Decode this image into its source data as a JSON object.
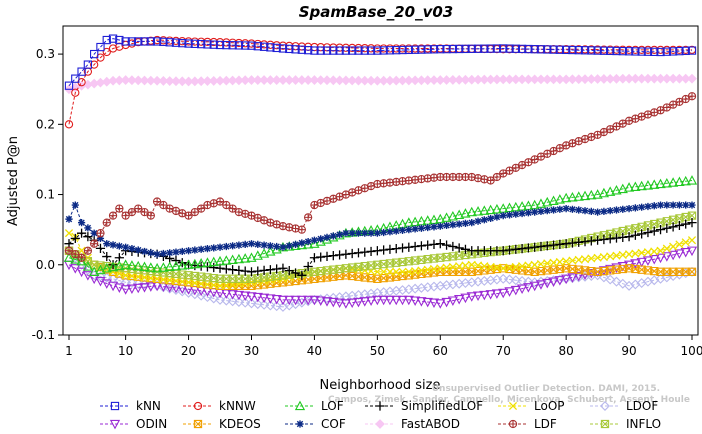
{
  "chart_data": {
    "type": "line",
    "title": "SpamBase_20_v03",
    "xlabel": "Neighborhood size",
    "ylabel": "Adjusted P@n",
    "xlim": [
      1,
      100
    ],
    "ylim": [
      -0.1,
      0.34
    ],
    "x_ticks": [
      1,
      10,
      20,
      30,
      40,
      50,
      60,
      70,
      80,
      90,
      100
    ],
    "y_ticks": [
      -0.1,
      0.0,
      0.1,
      0.2,
      0.3
    ],
    "y_tick_labels": [
      "-0.1",
      "0.0",
      "0.1",
      "0.2",
      "0.3"
    ],
    "grid": false,
    "legend_position": "bottom",
    "watermark": [
      "Unsupervised Outlier Detection. DAMI, 2015.",
      "Campos, Zimek, Sander, Campello, Micenkova, Schubert, Assent, Houle"
    ],
    "series": [
      {
        "name": "kNN",
        "color": "#1f1fd6",
        "marker": "square",
        "points": [
          [
            1,
            0.255
          ],
          [
            2,
            0.265
          ],
          [
            3,
            0.275
          ],
          [
            4,
            0.285
          ],
          [
            5,
            0.3
          ],
          [
            6,
            0.31
          ],
          [
            7,
            0.32
          ],
          [
            8,
            0.322
          ],
          [
            9,
            0.32
          ],
          [
            10,
            0.318
          ],
          [
            12,
            0.318
          ],
          [
            15,
            0.318
          ],
          [
            20,
            0.315
          ],
          [
            25,
            0.313
          ],
          [
            30,
            0.312
          ],
          [
            35,
            0.308
          ],
          [
            40,
            0.305
          ],
          [
            50,
            0.305
          ],
          [
            60,
            0.307
          ],
          [
            70,
            0.308
          ],
          [
            80,
            0.306
          ],
          [
            90,
            0.304
          ],
          [
            95,
            0.303
          ],
          [
            100,
            0.305
          ]
        ]
      },
      {
        "name": "kNNW",
        "color": "#e01c1c",
        "marker": "circle",
        "points": [
          [
            1,
            0.2
          ],
          [
            2,
            0.245
          ],
          [
            3,
            0.26
          ],
          [
            4,
            0.275
          ],
          [
            5,
            0.285
          ],
          [
            6,
            0.295
          ],
          [
            7,
            0.303
          ],
          [
            8,
            0.308
          ],
          [
            10,
            0.313
          ],
          [
            12,
            0.317
          ],
          [
            15,
            0.32
          ],
          [
            20,
            0.318
          ],
          [
            25,
            0.317
          ],
          [
            30,
            0.315
          ],
          [
            35,
            0.312
          ],
          [
            40,
            0.31
          ],
          [
            50,
            0.308
          ],
          [
            60,
            0.308
          ],
          [
            70,
            0.307
          ],
          [
            80,
            0.307
          ],
          [
            90,
            0.306
          ],
          [
            100,
            0.306
          ]
        ]
      },
      {
        "name": "LOF",
        "color": "#22c922",
        "marker": "triangle",
        "points": [
          [
            1,
            0.01
          ],
          [
            3,
            0.005
          ],
          [
            5,
            -0.01
          ],
          [
            7,
            -0.005
          ],
          [
            10,
            0.0
          ],
          [
            15,
            -0.005
          ],
          [
            20,
            0.0
          ],
          [
            25,
            0.005
          ],
          [
            30,
            0.01
          ],
          [
            35,
            0.025
          ],
          [
            40,
            0.03
          ],
          [
            45,
            0.045
          ],
          [
            50,
            0.05
          ],
          [
            55,
            0.06
          ],
          [
            60,
            0.065
          ],
          [
            65,
            0.075
          ],
          [
            70,
            0.08
          ],
          [
            75,
            0.085
          ],
          [
            80,
            0.095
          ],
          [
            85,
            0.1
          ],
          [
            90,
            0.11
          ],
          [
            95,
            0.115
          ],
          [
            100,
            0.12
          ]
        ]
      },
      {
        "name": "SimplifiedLOF",
        "color": "#000000",
        "marker": "plus",
        "points": [
          [
            1,
            0.03
          ],
          [
            3,
            0.045
          ],
          [
            5,
            0.035
          ],
          [
            8,
            0.0
          ],
          [
            10,
            0.02
          ],
          [
            15,
            0.015
          ],
          [
            20,
            0.0
          ],
          [
            25,
            -0.005
          ],
          [
            30,
            -0.01
          ],
          [
            35,
            -0.005
          ],
          [
            38,
            -0.015
          ],
          [
            40,
            0.01
          ],
          [
            45,
            0.015
          ],
          [
            50,
            0.02
          ],
          [
            55,
            0.025
          ],
          [
            60,
            0.03
          ],
          [
            65,
            0.02
          ],
          [
            70,
            0.02
          ],
          [
            75,
            0.025
          ],
          [
            80,
            0.03
          ],
          [
            85,
            0.035
          ],
          [
            90,
            0.04
          ],
          [
            95,
            0.05
          ],
          [
            100,
            0.06
          ]
        ]
      },
      {
        "name": "LoOP",
        "color": "#f0e000",
        "marker": "x",
        "points": [
          [
            1,
            0.045
          ],
          [
            2,
            0.04
          ],
          [
            3,
            0.02
          ],
          [
            5,
            0.0
          ],
          [
            8,
            -0.01
          ],
          [
            10,
            -0.015
          ],
          [
            15,
            -0.02
          ],
          [
            20,
            -0.025
          ],
          [
            25,
            -0.03
          ],
          [
            30,
            -0.025
          ],
          [
            35,
            -0.02
          ],
          [
            40,
            -0.01
          ],
          [
            45,
            -0.005
          ],
          [
            50,
            -0.01
          ],
          [
            55,
            -0.01
          ],
          [
            60,
            -0.005
          ],
          [
            65,
            0.0
          ],
          [
            70,
            -0.005
          ],
          [
            75,
            0.0
          ],
          [
            80,
            0.005
          ],
          [
            85,
            0.01
          ],
          [
            90,
            0.015
          ],
          [
            95,
            0.02
          ],
          [
            100,
            0.035
          ]
        ]
      },
      {
        "name": "LDOF",
        "color": "#b8b8ec",
        "marker": "diamond",
        "points": [
          [
            1,
            0.02
          ],
          [
            3,
            0.0
          ],
          [
            5,
            -0.015
          ],
          [
            8,
            -0.02
          ],
          [
            10,
            -0.025
          ],
          [
            15,
            -0.03
          ],
          [
            20,
            -0.04
          ],
          [
            25,
            -0.05
          ],
          [
            30,
            -0.055
          ],
          [
            35,
            -0.06
          ],
          [
            40,
            -0.05
          ],
          [
            45,
            -0.045
          ],
          [
            50,
            -0.04
          ],
          [
            55,
            -0.035
          ],
          [
            60,
            -0.03
          ],
          [
            65,
            -0.025
          ],
          [
            70,
            -0.02
          ],
          [
            75,
            -0.025
          ],
          [
            80,
            -0.02
          ],
          [
            85,
            -0.015
          ],
          [
            90,
            -0.03
          ],
          [
            95,
            -0.02
          ],
          [
            100,
            -0.01
          ]
        ]
      },
      {
        "name": "ODIN",
        "color": "#9a2ad4",
        "marker": "triangle-down",
        "points": [
          [
            1,
            0.0
          ],
          [
            3,
            -0.01
          ],
          [
            5,
            -0.02
          ],
          [
            8,
            -0.03
          ],
          [
            10,
            -0.035
          ],
          [
            15,
            -0.03
          ],
          [
            20,
            -0.035
          ],
          [
            25,
            -0.04
          ],
          [
            30,
            -0.045
          ],
          [
            35,
            -0.05
          ],
          [
            40,
            -0.05
          ],
          [
            45,
            -0.055
          ],
          [
            50,
            -0.05
          ],
          [
            55,
            -0.05
          ],
          [
            60,
            -0.055
          ],
          [
            65,
            -0.045
          ],
          [
            70,
            -0.04
          ],
          [
            75,
            -0.03
          ],
          [
            80,
            -0.02
          ],
          [
            85,
            -0.01
          ],
          [
            90,
            0.0
          ],
          [
            95,
            0.01
          ],
          [
            100,
            0.02
          ]
        ]
      },
      {
        "name": "KDEOS",
        "color": "#f0a000",
        "marker": "square-x",
        "points": [
          [
            1,
            0.02
          ],
          [
            3,
            0.01
          ],
          [
            5,
            0.0
          ],
          [
            8,
            -0.01
          ],
          [
            10,
            -0.015
          ],
          [
            15,
            -0.02
          ],
          [
            20,
            -0.025
          ],
          [
            25,
            -0.03
          ],
          [
            30,
            -0.03
          ],
          [
            35,
            -0.025
          ],
          [
            40,
            -0.02
          ],
          [
            45,
            -0.015
          ],
          [
            50,
            -0.02
          ],
          [
            55,
            -0.015
          ],
          [
            60,
            -0.01
          ],
          [
            65,
            -0.01
          ],
          [
            70,
            -0.005
          ],
          [
            75,
            -0.01
          ],
          [
            80,
            -0.005
          ],
          [
            85,
            -0.01
          ],
          [
            90,
            -0.005
          ],
          [
            95,
            -0.01
          ],
          [
            100,
            -0.01
          ]
        ]
      },
      {
        "name": "COF",
        "color": "#0b2a86",
        "marker": "asterisk",
        "points": [
          [
            1,
            0.065
          ],
          [
            2,
            0.085
          ],
          [
            3,
            0.06
          ],
          [
            5,
            0.045
          ],
          [
            7,
            0.03
          ],
          [
            10,
            0.025
          ],
          [
            15,
            0.015
          ],
          [
            20,
            0.02
          ],
          [
            25,
            0.025
          ],
          [
            30,
            0.03
          ],
          [
            35,
            0.025
          ],
          [
            40,
            0.035
          ],
          [
            45,
            0.045
          ],
          [
            50,
            0.045
          ],
          [
            55,
            0.05
          ],
          [
            60,
            0.055
          ],
          [
            65,
            0.06
          ],
          [
            70,
            0.07
          ],
          [
            75,
            0.075
          ],
          [
            80,
            0.08
          ],
          [
            85,
            0.075
          ],
          [
            90,
            0.08
          ],
          [
            95,
            0.085
          ],
          [
            100,
            0.085
          ]
        ]
      },
      {
        "name": "FastABOD",
        "color": "#f7c7f3",
        "marker": "diamond-filled",
        "points": [
          [
            1,
            0.25
          ],
          [
            3,
            0.255
          ],
          [
            5,
            0.258
          ],
          [
            8,
            0.262
          ],
          [
            10,
            0.263
          ],
          [
            15,
            0.262
          ],
          [
            20,
            0.261
          ],
          [
            25,
            0.262
          ],
          [
            30,
            0.263
          ],
          [
            40,
            0.263
          ],
          [
            50,
            0.262
          ],
          [
            60,
            0.263
          ],
          [
            70,
            0.264
          ],
          [
            80,
            0.264
          ],
          [
            90,
            0.265
          ],
          [
            100,
            0.265
          ]
        ]
      },
      {
        "name": "LDF",
        "color": "#a83232",
        "marker": "circle-plus",
        "points": [
          [
            1,
            0.02
          ],
          [
            3,
            0.01
          ],
          [
            5,
            0.03
          ],
          [
            7,
            0.06
          ],
          [
            9,
            0.08
          ],
          [
            10,
            0.07
          ],
          [
            12,
            0.08
          ],
          [
            14,
            0.07
          ],
          [
            15,
            0.09
          ],
          [
            17,
            0.08
          ],
          [
            20,
            0.07
          ],
          [
            23,
            0.085
          ],
          [
            25,
            0.09
          ],
          [
            28,
            0.075
          ],
          [
            30,
            0.07
          ],
          [
            33,
            0.06
          ],
          [
            35,
            0.055
          ],
          [
            38,
            0.05
          ],
          [
            40,
            0.085
          ],
          [
            45,
            0.1
          ],
          [
            50,
            0.115
          ],
          [
            55,
            0.12
          ],
          [
            60,
            0.125
          ],
          [
            65,
            0.125
          ],
          [
            68,
            0.12
          ],
          [
            70,
            0.13
          ],
          [
            75,
            0.15
          ],
          [
            80,
            0.17
          ],
          [
            85,
            0.185
          ],
          [
            90,
            0.205
          ],
          [
            95,
            0.22
          ],
          [
            100,
            0.24
          ]
        ]
      },
      {
        "name": "INFLO",
        "color": "#a8c838",
        "marker": "square-x",
        "points": [
          [
            1,
            0.02
          ],
          [
            3,
            0.01
          ],
          [
            5,
            0.0
          ],
          [
            10,
            -0.005
          ],
          [
            15,
            -0.01
          ],
          [
            20,
            -0.015
          ],
          [
            25,
            -0.02
          ],
          [
            30,
            -0.02
          ],
          [
            35,
            -0.015
          ],
          [
            40,
            -0.01
          ],
          [
            45,
            -0.005
          ],
          [
            50,
            0.0
          ],
          [
            55,
            0.005
          ],
          [
            60,
            0.01
          ],
          [
            65,
            0.015
          ],
          [
            70,
            0.02
          ],
          [
            75,
            0.025
          ],
          [
            80,
            0.03
          ],
          [
            85,
            0.04
          ],
          [
            90,
            0.05
          ],
          [
            95,
            0.06
          ],
          [
            100,
            0.07
          ]
        ]
      }
    ]
  }
}
